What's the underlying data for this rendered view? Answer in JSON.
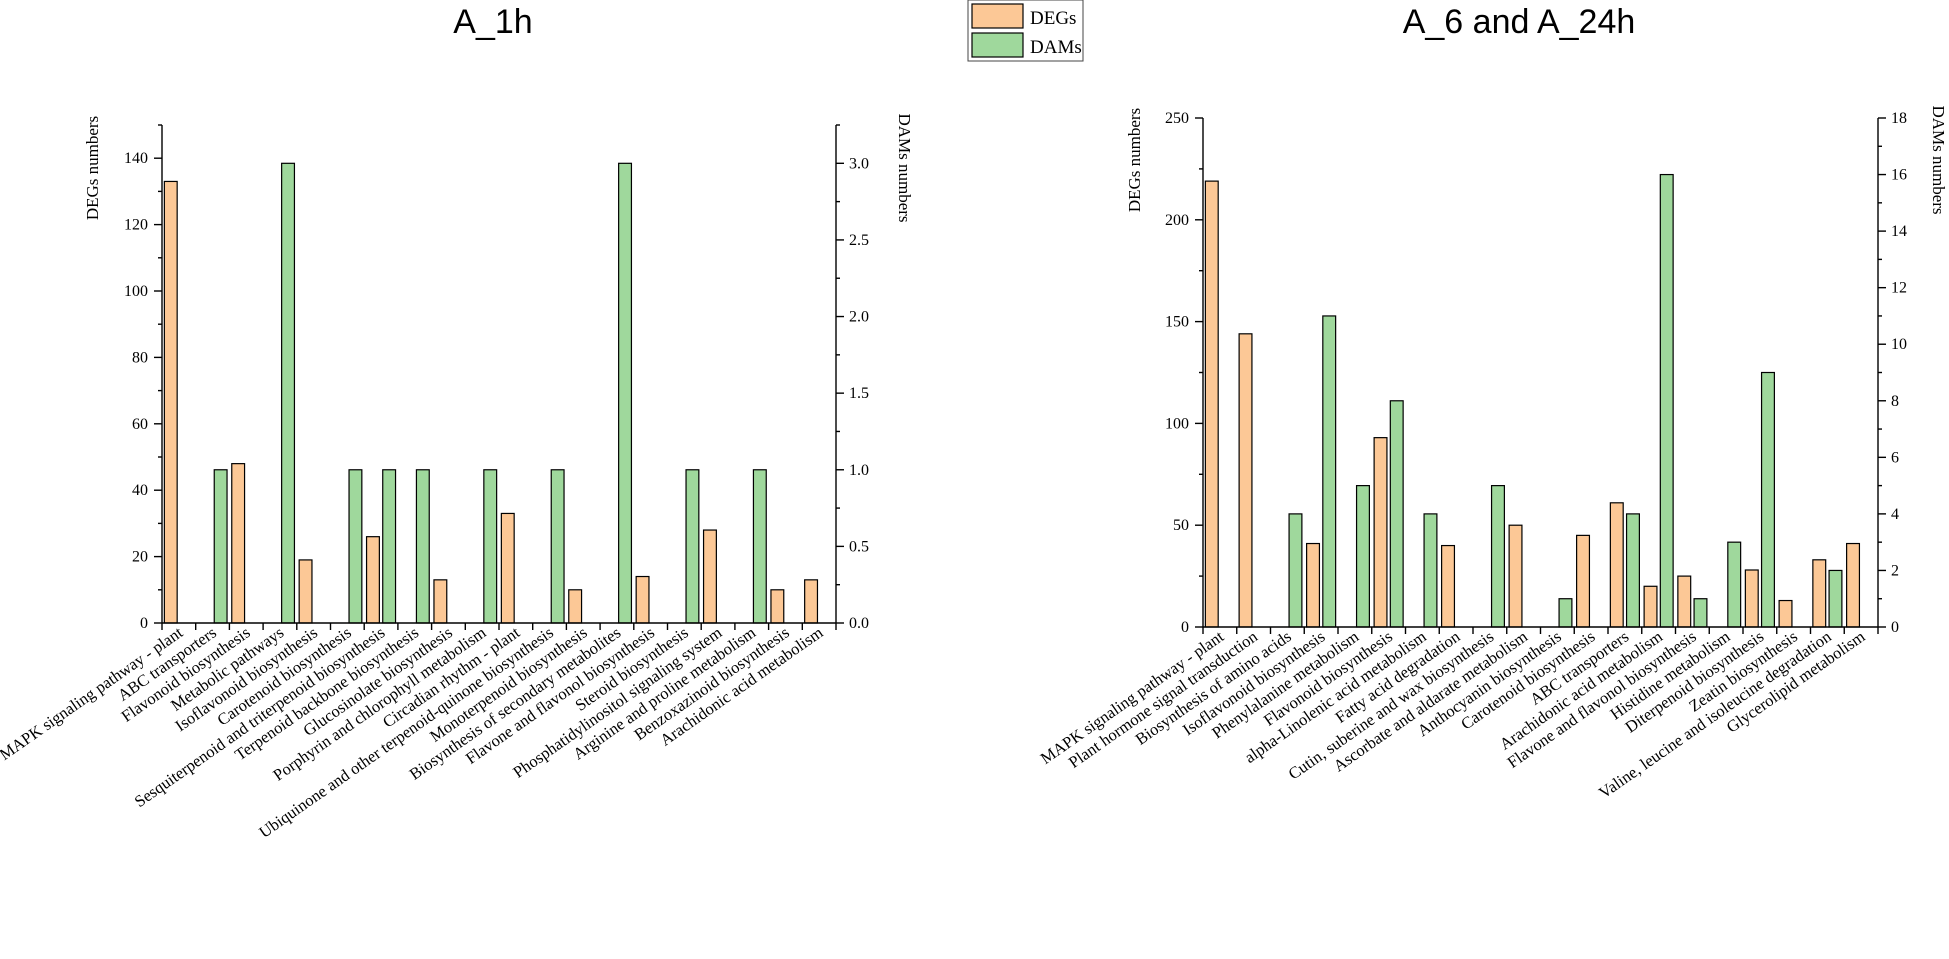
{
  "colors": {
    "degs": "#fcc896",
    "dams": "#9fd89c"
  },
  "legend": {
    "degs_label": "DEGs",
    "dams_label": "DAMs"
  },
  "chart_data": [
    {
      "type": "bar",
      "title": "A_1h",
      "ylabel_left": "DEGs numbers",
      "ylabel_right": "DAMs numbers",
      "ylim_left": [
        0,
        150
      ],
      "ylim_right": [
        0,
        3.25
      ],
      "left_ticks": [
        0,
        20,
        40,
        60,
        80,
        100,
        120,
        140
      ],
      "right_ticks": [
        0.0,
        0.5,
        1.0,
        1.5,
        2.0,
        2.5,
        3.0
      ],
      "right_tick_labels": [
        "0.0",
        "0.5",
        "1.0",
        "1.5",
        "2.0",
        "2.5",
        "3.0"
      ],
      "categories": [
        "MAPK signaling pathway - plant",
        "ABC transporters",
        "Flavonoid biosynthesis",
        "Metabolic pathways",
        "Isoflavonoid biosynthesis",
        "Carotenoid biosynthesis",
        "Sesquiterpenoid and triterpenoid biosynthesis",
        "Terpenoid backbone biosynthesis",
        "Glucosinolate biosynthesis",
        "Porphyrin and chlorophyll metabolism",
        "Circadian rhythm - plant",
        "Ubiquinone and other terpenoid-quinone biosynthesis",
        "Monoterpenoid biosynthesis",
        "Biosynthesis of secondary metabolites",
        "Flavone and flavonol biosynthesis",
        "Steroid biosynthesis",
        "Phosphatidylinositol signaling system",
        "Arginine and proline metabolism",
        "Benzoxazinoid biosynthesis",
        "Arachidonic acid metabolism"
      ],
      "series": [
        {
          "name": "DEGs",
          "axis": "left",
          "values": [
            133,
            0,
            48,
            0,
            19,
            0,
            26,
            0,
            13,
            0,
            33,
            0,
            10,
            0,
            14,
            0,
            28,
            0,
            10,
            13
          ]
        },
        {
          "name": "DAMs",
          "axis": "right",
          "values": [
            0,
            1,
            0,
            3,
            0,
            1,
            1,
            1,
            0,
            1,
            0,
            1,
            0,
            3,
            0,
            1,
            0,
            1,
            0,
            0
          ]
        }
      ]
    },
    {
      "type": "bar",
      "title": "A_6 and A_24h",
      "ylabel_left": "DEGs numbers",
      "ylabel_right": "DAMs numbers",
      "ylim_left": [
        0,
        250
      ],
      "ylim_right": [
        0,
        18
      ],
      "left_ticks": [
        0,
        50,
        100,
        150,
        200,
        250
      ],
      "right_ticks": [
        0,
        2,
        4,
        6,
        8,
        10,
        12,
        14,
        16,
        18
      ],
      "right_tick_labels": [
        "0",
        "2",
        "4",
        "6",
        "8",
        "10",
        "12",
        "14",
        "16",
        "18"
      ],
      "categories": [
        "MAPK signaling pathway - plant",
        "Plant hormone signal transduction",
        "Biosynthesis of amino acids",
        "Isoflavonoid biosynthesis",
        "Phenylalanine metabolism",
        "Flavonoid biosynthesis",
        "alpha-Linolenic acid metabolism",
        "Fatty acid degradation",
        "Cutin, suberine and wax biosynthesis",
        "Ascorbate and aldarate metabolism",
        "Anthocyanin biosynthesis",
        "Carotenoid biosynthesis",
        "ABC transporters",
        "Arachidonic acid metabolism",
        "Flavone and flavonol biosynthesis",
        "Histidine metabolism",
        "Diterpenoid biosynthesis",
        "Zeatin biosynthesis",
        "Valine, leucine and isoleucine degradation",
        "Glycerolipid metabolism"
      ],
      "series": [
        {
          "name": "DEGs",
          "axis": "left",
          "values": [
            219,
            144,
            0,
            41,
            0,
            93,
            0,
            40,
            0,
            50,
            0,
            45,
            61,
            20,
            25,
            0,
            28,
            13,
            33,
            41
          ]
        },
        {
          "name": "DAMs",
          "axis": "right",
          "values": [
            0,
            0,
            4,
            11,
            5,
            8,
            4,
            0,
            5,
            0,
            1,
            0,
            4,
            16,
            1,
            3,
            9,
            0,
            2,
            0
          ]
        }
      ]
    }
  ]
}
